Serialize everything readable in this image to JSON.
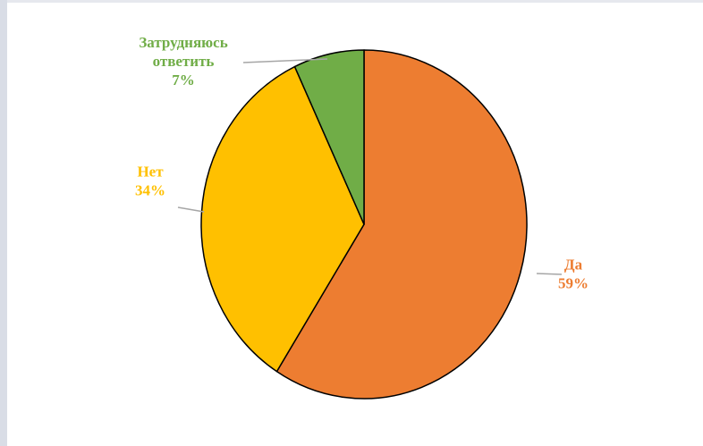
{
  "chart_data": {
    "type": "pie",
    "title": "",
    "start_angle_deg": 0,
    "direction": "clockwise",
    "slices": [
      {
        "label_lines": [
          "Да"
        ],
        "value_label": "59%",
        "value": 59,
        "color": "#ED7D31"
      },
      {
        "label_lines": [
          "Нет"
        ],
        "value_label": "34%",
        "value": 34,
        "color": "#FFC000"
      },
      {
        "label_lines": [
          "Затрудняюсь",
          "ответить"
        ],
        "value_label": "7%",
        "value": 7,
        "color": "#70AD47"
      }
    ],
    "slice_border_color": "#000000",
    "leader_line_color": "#a6a6a6"
  }
}
